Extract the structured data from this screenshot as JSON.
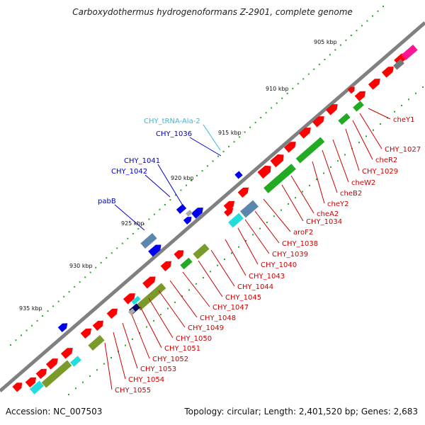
{
  "header": {
    "title": "Carboxydothermus hydrogenoformans Z-2901, complete genome"
  },
  "footer": {
    "accession": "Accession: NC_007503",
    "topology": "Topology: circular; Length: 2,401,520 bp; Genes: 2,683"
  },
  "ticks": {
    "labels": [
      "905 kbp",
      "910 kbp",
      "915 kbp",
      "920 kbp",
      "925 kbp",
      "930 kbp",
      "935 kbp"
    ],
    "color": "#2e8b2e"
  },
  "colors": {
    "backbone": "#808080",
    "cds": "#ff0000",
    "label_red": "#cc0000",
    "label_blue": "#0000cc",
    "label_cyan": "#33bbdd",
    "blue_feature": "#0000ee",
    "green_feature": "#22aa22",
    "olive_feature": "#7a9a2a",
    "cyan_feature": "#22dddd",
    "steel_feature": "#5b86b0",
    "magenta_feature": "#ff1493"
  },
  "left_labels": [
    {
      "text": "CHY_tRNA-Ala-2",
      "color": "cyan"
    },
    {
      "text": "CHY_1036",
      "color": "blue"
    },
    {
      "text": "CHY_1041",
      "color": "blue"
    },
    {
      "text": "CHY_1042",
      "color": "blue"
    },
    {
      "text": "pabB",
      "color": "blue"
    }
  ],
  "right_labels": [
    "cheY1",
    "CHY_1027",
    "cheR2",
    "CHY_1029",
    "cheW2",
    "cheB2",
    "cheY2",
    "cheA2",
    "CHY_1034",
    "aroF2",
    "CHY_1038",
    "CHY_1039",
    "CHY_1040",
    "CHY_1043",
    "CHY_1044",
    "CHY_1045",
    "CHY_1047",
    "CHY_1048",
    "CHY_1049",
    "CHY_1050",
    "CHY_1051",
    "CHY_1052",
    "CHY_1053",
    "CHY_1054",
    "CHY_1055"
  ]
}
